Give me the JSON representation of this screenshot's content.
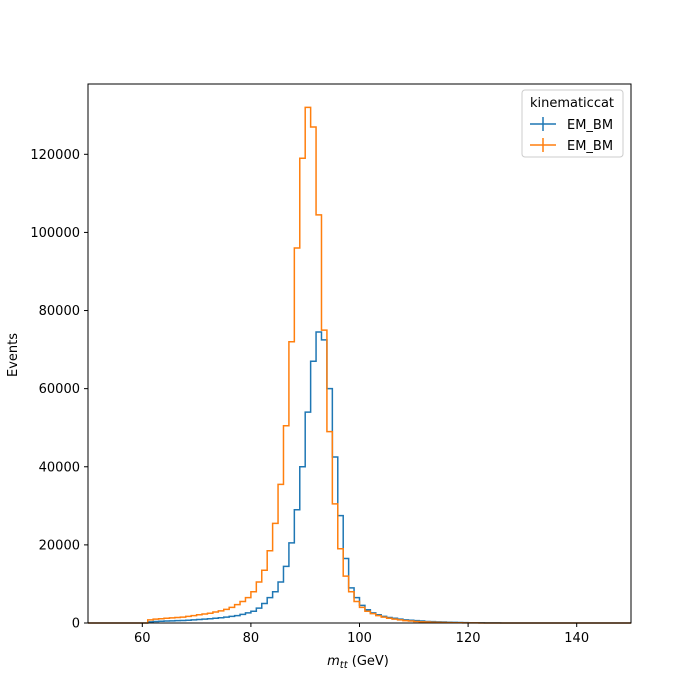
{
  "chart_data": {
    "type": "histogram-step",
    "xlabel_symbol": "m",
    "xlabel_subscript": "tt",
    "xlabel_unit": " (GeV)",
    "ylabel": "Events",
    "xlim": [
      50,
      150
    ],
    "ylim": [
      0,
      138000
    ],
    "xticks": [
      60,
      80,
      100,
      120,
      140
    ],
    "yticks": [
      0,
      20000,
      40000,
      60000,
      80000,
      100000,
      120000
    ],
    "legend_title": "kinematiccat",
    "legend_position": "top-right",
    "grid": false,
    "bin_edges": [
      50,
      51,
      52,
      53,
      54,
      55,
      56,
      57,
      58,
      59,
      60,
      61,
      62,
      63,
      64,
      65,
      66,
      67,
      68,
      69,
      70,
      71,
      72,
      73,
      74,
      75,
      76,
      77,
      78,
      79,
      80,
      81,
      82,
      83,
      84,
      85,
      86,
      87,
      88,
      89,
      90,
      91,
      92,
      93,
      94,
      95,
      96,
      97,
      98,
      99,
      100,
      101,
      102,
      103,
      104,
      105,
      106,
      107,
      108,
      109,
      110,
      111,
      112,
      113,
      114,
      115,
      116,
      117,
      118,
      119,
      120,
      121,
      122,
      123,
      124,
      125,
      126,
      127,
      128,
      129,
      130,
      131,
      132,
      133,
      134,
      135,
      136,
      137,
      138,
      139,
      140,
      141,
      142,
      143,
      144,
      145,
      146,
      147,
      148,
      149,
      150
    ],
    "series": [
      {
        "name": "EM_BM",
        "color": "#1f77b4",
        "values": [
          0,
          0,
          0,
          0,
          0,
          0,
          0,
          0,
          0,
          0,
          0,
          300,
          400,
          450,
          500,
          550,
          600,
          650,
          700,
          800,
          900,
          1000,
          1100,
          1200,
          1350,
          1500,
          1700,
          1900,
          2200,
          2600,
          3000,
          3800,
          5000,
          6500,
          8000,
          10500,
          14500,
          20500,
          29000,
          40000,
          54000,
          67000,
          74500,
          72500,
          60000,
          42500,
          27500,
          16500,
          9000,
          6500,
          4500,
          3400,
          2600,
          2100,
          1700,
          1400,
          1200,
          1000,
          800,
          700,
          600,
          500,
          400,
          350,
          300,
          250,
          200,
          150,
          120,
          100,
          80,
          60,
          50,
          40,
          30,
          20,
          0,
          0,
          0,
          0,
          0,
          0,
          0,
          0,
          0,
          0,
          0,
          0,
          0,
          0,
          0,
          0,
          0,
          0,
          0,
          0,
          0,
          0,
          0,
          0
        ],
        "errors": []
      },
      {
        "name": "EM_BM",
        "color": "#ff7f0e",
        "values": [
          0,
          0,
          0,
          0,
          0,
          0,
          0,
          0,
          0,
          0,
          0,
          800,
          1000,
          1100,
          1200,
          1300,
          1400,
          1500,
          1700,
          1900,
          2100,
          2300,
          2500,
          2800,
          3100,
          3500,
          4000,
          4700,
          5500,
          6500,
          8000,
          10500,
          13500,
          18500,
          25500,
          35500,
          50500,
          72000,
          96000,
          119000,
          132000,
          127000,
          104500,
          75000,
          49000,
          30500,
          19000,
          12000,
          8000,
          5500,
          4000,
          3000,
          2400,
          1900,
          1500,
          1200,
          1000,
          800,
          600,
          500,
          400,
          300,
          250,
          200,
          150,
          120,
          100,
          80,
          60,
          40,
          30,
          20,
          10,
          0,
          0,
          0,
          0,
          0,
          0,
          0,
          0,
          0,
          0,
          0,
          0,
          0,
          0,
          0,
          0,
          0,
          0,
          0,
          0,
          0,
          0,
          0,
          0,
          0,
          0,
          0
        ],
        "errors": []
      }
    ]
  }
}
